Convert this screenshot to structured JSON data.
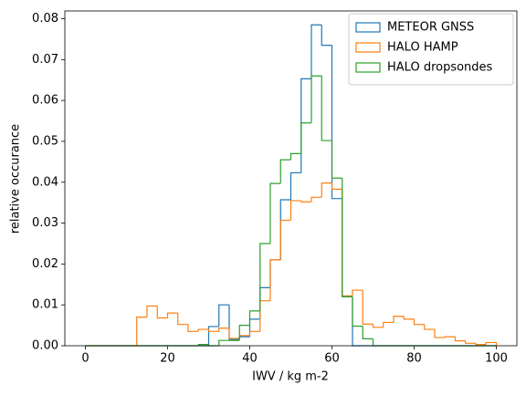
{
  "chart_data": {
    "type": "histogram",
    "histtype": "step",
    "xlabel": "IWV / kg m-2",
    "ylabel": "relative occurance",
    "bins": [
      0,
      2.5,
      5,
      7.5,
      10,
      12.5,
      15,
      17.5,
      20,
      22.5,
      25,
      27.5,
      30,
      32.5,
      35,
      37.5,
      40,
      42.5,
      45,
      47.5,
      50,
      52.5,
      55,
      57.5,
      60,
      62.5,
      65,
      67.5,
      70,
      72.5,
      75,
      77.5,
      80,
      82.5,
      85,
      87.5,
      90,
      92.5,
      95,
      97.5,
      100
    ],
    "series": [
      {
        "name": "METEOR GNSS",
        "color": "#1f77b4",
        "values": [
          0,
          0,
          0,
          0,
          0,
          0,
          0,
          0,
          0,
          0,
          0,
          0,
          0.0047,
          0.01,
          0.0015,
          0.0022,
          0.0065,
          0.0142,
          0.021,
          0.0357,
          0.0423,
          0.0653,
          0.0785,
          0.0735,
          0.036,
          0.012,
          0,
          0,
          0,
          0,
          0,
          0,
          0,
          0,
          0,
          0,
          0,
          0,
          0,
          0
        ]
      },
      {
        "name": "HALO HAMP",
        "color": "#ff7f0e",
        "values": [
          0,
          0,
          0,
          0,
          0,
          0.007,
          0.0097,
          0.0068,
          0.008,
          0.0052,
          0.0035,
          0.004,
          0.0035,
          0.0043,
          0.0018,
          0.0025,
          0.0035,
          0.011,
          0.021,
          0.0307,
          0.0355,
          0.0352,
          0.0363,
          0.0398,
          0.0383,
          0.0122,
          0.0136,
          0.0053,
          0.0045,
          0.0057,
          0.0072,
          0.0065,
          0.0052,
          0.004,
          0.002,
          0.0022,
          0.0012,
          0.0006,
          0.0003,
          0.0008
        ]
      },
      {
        "name": "HALO dropsondes",
        "color": "#2ca02c",
        "values": [
          0,
          0,
          0,
          0,
          0,
          0,
          0,
          0,
          0,
          0,
          0,
          0.0003,
          0,
          0.0013,
          0.0013,
          0.005,
          0.0085,
          0.025,
          0.0397,
          0.0455,
          0.047,
          0.0545,
          0.066,
          0.0502,
          0.041,
          0.012,
          0.0048,
          0.0017,
          0,
          0,
          0,
          0,
          0,
          0,
          0,
          0,
          0,
          0,
          0,
          0
        ]
      }
    ],
    "xlim": [
      -5,
      105
    ],
    "xticks": [
      0,
      20,
      40,
      60,
      80,
      100
    ],
    "ylim": [
      0,
      0.0819
    ],
    "yticks": [
      {
        "value": 0,
        "label": "0.00"
      },
      {
        "value": 0.01,
        "label": "0.01"
      },
      {
        "value": 0.02,
        "label": "0.02"
      },
      {
        "value": 0.03,
        "label": "0.03"
      },
      {
        "value": 0.04,
        "label": "0.04"
      },
      {
        "value": 0.05,
        "label": "0.05"
      },
      {
        "value": 0.06,
        "label": "0.06"
      },
      {
        "value": 0.07,
        "label": "0.07"
      },
      {
        "value": 0.08,
        "label": "0.08"
      }
    ],
    "grid": false,
    "legend": "upper right"
  }
}
